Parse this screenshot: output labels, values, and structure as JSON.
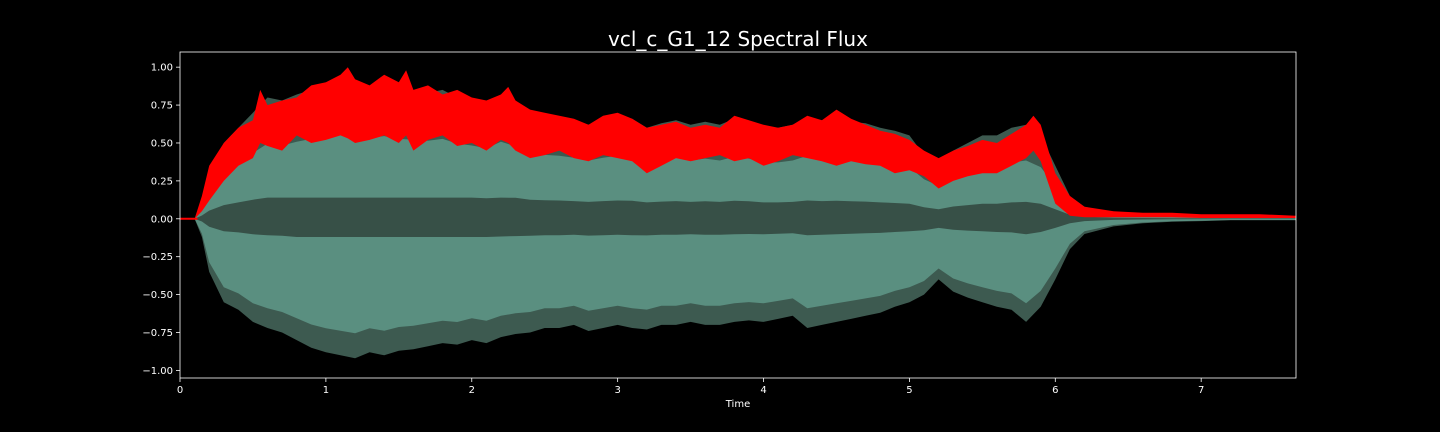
{
  "chart_data": {
    "type": "area",
    "title": "vcl_c_G1_12 Spectral Flux",
    "xlabel": "Time",
    "ylabel": "",
    "xlim": [
      0,
      7.65
    ],
    "ylim": [
      -1.05,
      1.1
    ],
    "x_ticks": [
      "0",
      "1",
      "2",
      "3",
      "4",
      "5",
      "6",
      "7"
    ],
    "y_ticks": [
      "1.00",
      "0.75",
      "0.50",
      "0.25",
      "0.00",
      "−0.25",
      "−0.50",
      "−0.75",
      "−1.00"
    ],
    "grid": false,
    "legend": "none",
    "colors": {
      "background": "#000000",
      "frame": "#ffffff",
      "waveform_outer": "#3d5a50",
      "waveform_inner": "#5a8f80",
      "waveform_core": "#375047",
      "flux": "#ff0000"
    },
    "waveform_envelope": {
      "x": [
        0.0,
        0.1,
        0.15,
        0.2,
        0.3,
        0.4,
        0.5,
        0.6,
        0.7,
        0.8,
        0.9,
        1.0,
        1.1,
        1.2,
        1.3,
        1.4,
        1.5,
        1.6,
        1.7,
        1.8,
        1.9,
        2.0,
        2.1,
        2.2,
        2.3,
        2.4,
        2.5,
        2.6,
        2.7,
        2.8,
        2.9,
        3.0,
        3.1,
        3.2,
        3.3,
        3.4,
        3.5,
        3.6,
        3.7,
        3.8,
        3.9,
        4.0,
        4.1,
        4.2,
        4.3,
        4.4,
        4.5,
        4.6,
        4.7,
        4.8,
        4.9,
        5.0,
        5.1,
        5.2,
        5.3,
        5.4,
        5.5,
        5.6,
        5.7,
        5.8,
        5.9,
        6.0,
        6.1,
        6.2,
        6.4,
        6.6,
        6.8,
        7.0,
        7.2,
        7.4,
        7.65
      ],
      "upper": [
        0.0,
        0.0,
        0.12,
        0.3,
        0.5,
        0.6,
        0.7,
        0.8,
        0.78,
        0.82,
        0.85,
        0.88,
        0.9,
        0.88,
        0.86,
        0.88,
        0.85,
        0.84,
        0.83,
        0.85,
        0.8,
        0.78,
        0.75,
        0.82,
        0.77,
        0.7,
        0.68,
        0.67,
        0.65,
        0.62,
        0.65,
        0.67,
        0.66,
        0.6,
        0.63,
        0.65,
        0.62,
        0.64,
        0.62,
        0.66,
        0.64,
        0.6,
        0.6,
        0.62,
        0.67,
        0.65,
        0.66,
        0.64,
        0.63,
        0.6,
        0.58,
        0.55,
        0.42,
        0.35,
        0.45,
        0.5,
        0.55,
        0.55,
        0.6,
        0.62,
        0.55,
        0.35,
        0.15,
        0.08,
        0.04,
        0.03,
        0.02,
        0.015,
        0.01,
        0.01,
        0.01
      ],
      "lower": [
        0.0,
        0.0,
        -0.12,
        -0.35,
        -0.55,
        -0.6,
        -0.68,
        -0.72,
        -0.75,
        -0.8,
        -0.85,
        -0.88,
        -0.9,
        -0.92,
        -0.88,
        -0.9,
        -0.87,
        -0.86,
        -0.84,
        -0.82,
        -0.83,
        -0.8,
        -0.82,
        -0.78,
        -0.76,
        -0.75,
        -0.72,
        -0.72,
        -0.7,
        -0.74,
        -0.72,
        -0.7,
        -0.72,
        -0.73,
        -0.7,
        -0.7,
        -0.68,
        -0.7,
        -0.7,
        -0.68,
        -0.67,
        -0.68,
        -0.66,
        -0.64,
        -0.72,
        -0.7,
        -0.68,
        -0.66,
        -0.64,
        -0.62,
        -0.58,
        -0.55,
        -0.5,
        -0.4,
        -0.48,
        -0.52,
        -0.55,
        -0.58,
        -0.6,
        -0.68,
        -0.58,
        -0.4,
        -0.2,
        -0.1,
        -0.05,
        -0.03,
        -0.02,
        -0.015,
        -0.01,
        -0.01,
        -0.01
      ]
    },
    "series": [
      {
        "x": [
          0.0,
          0.1,
          0.15,
          0.2,
          0.3,
          0.4,
          0.5,
          0.55,
          0.6,
          0.7,
          0.8,
          0.9,
          1.0,
          1.1,
          1.15,
          1.2,
          1.3,
          1.4,
          1.5,
          1.55,
          1.6,
          1.7,
          1.8,
          1.9,
          2.0,
          2.1,
          2.2,
          2.25,
          2.3,
          2.4,
          2.5,
          2.6,
          2.7,
          2.8,
          2.9,
          3.0,
          3.1,
          3.2,
          3.3,
          3.4,
          3.5,
          3.6,
          3.7,
          3.8,
          3.9,
          4.0,
          4.1,
          4.2,
          4.3,
          4.4,
          4.5,
          4.6,
          4.7,
          4.8,
          4.9,
          5.0,
          5.1,
          5.2,
          5.3,
          5.4,
          5.5,
          5.6,
          5.7,
          5.8,
          5.85,
          5.9,
          6.0,
          6.1,
          6.2,
          6.4,
          6.6,
          6.8,
          7.0,
          7.2,
          7.4,
          7.65
        ],
        "upper": [
          0.0,
          0.0,
          0.15,
          0.35,
          0.5,
          0.6,
          0.65,
          0.85,
          0.75,
          0.78,
          0.8,
          0.88,
          0.9,
          0.95,
          1.0,
          0.92,
          0.88,
          0.95,
          0.9,
          0.98,
          0.85,
          0.88,
          0.82,
          0.85,
          0.8,
          0.78,
          0.82,
          0.87,
          0.78,
          0.72,
          0.7,
          0.68,
          0.66,
          0.62,
          0.68,
          0.7,
          0.66,
          0.6,
          0.62,
          0.64,
          0.6,
          0.62,
          0.6,
          0.68,
          0.65,
          0.62,
          0.6,
          0.62,
          0.68,
          0.65,
          0.72,
          0.66,
          0.62,
          0.58,
          0.56,
          0.52,
          0.45,
          0.4,
          0.45,
          0.48,
          0.52,
          0.5,
          0.56,
          0.62,
          0.68,
          0.62,
          0.3,
          0.15,
          0.08,
          0.05,
          0.04,
          0.04,
          0.03,
          0.03,
          0.03,
          0.02
        ],
        "lower": [
          0.0,
          0.0,
          0.05,
          0.12,
          0.25,
          0.35,
          0.4,
          0.5,
          0.48,
          0.45,
          0.55,
          0.5,
          0.52,
          0.55,
          0.53,
          0.5,
          0.52,
          0.55,
          0.5,
          0.55,
          0.45,
          0.52,
          0.55,
          0.48,
          0.5,
          0.45,
          0.52,
          0.5,
          0.45,
          0.4,
          0.42,
          0.45,
          0.4,
          0.38,
          0.42,
          0.4,
          0.38,
          0.3,
          0.35,
          0.4,
          0.38,
          0.4,
          0.42,
          0.38,
          0.4,
          0.35,
          0.38,
          0.42,
          0.4,
          0.38,
          0.35,
          0.38,
          0.36,
          0.35,
          0.3,
          0.32,
          0.28,
          0.2,
          0.25,
          0.28,
          0.3,
          0.3,
          0.35,
          0.4,
          0.45,
          0.38,
          0.1,
          0.02,
          0.01,
          0.01,
          0.01,
          0.01,
          0.005,
          0.005,
          0.005,
          0.005
        ]
      }
    ]
  }
}
